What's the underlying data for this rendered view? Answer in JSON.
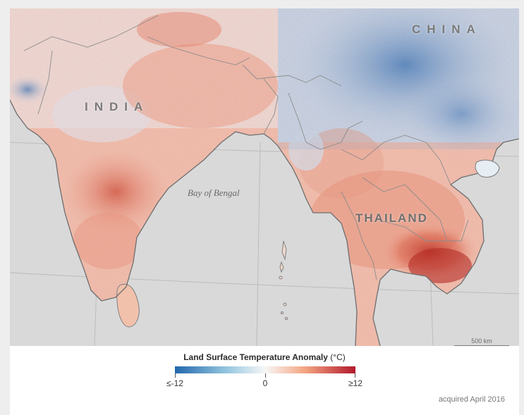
{
  "map": {
    "labels": {
      "china": "CHINA",
      "india": "INDIA",
      "thailand": "THAILAND",
      "bay": "Bay of Bengal"
    },
    "scalebar": "500 km"
  },
  "legend": {
    "title": "Land Surface Temperature Anomaly",
    "unit": "(°C)",
    "min_label": "≤-12",
    "mid_label": "0",
    "max_label": "≥12",
    "colors": {
      "cold": "#2166ac",
      "neutral": "#f7f7f7",
      "warm": "#b2182b"
    }
  },
  "footer": {
    "acquired": "acquired April 2016"
  }
}
